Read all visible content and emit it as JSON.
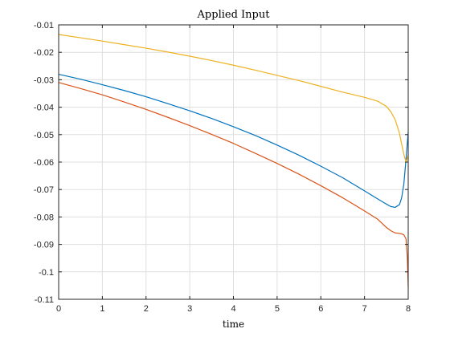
{
  "chart_data": {
    "type": "line",
    "title": "Applied Input",
    "xlabel": "time",
    "ylabel": "",
    "xlim": [
      0,
      8
    ],
    "ylim": [
      -0.11,
      -0.01
    ],
    "xticks": [
      0,
      1,
      2,
      3,
      4,
      5,
      6,
      7,
      8
    ],
    "xtick_labels": [
      "0",
      "1",
      "2",
      "3",
      "4",
      "5",
      "6",
      "7",
      "8"
    ],
    "yticks": [
      -0.01,
      -0.02,
      -0.03,
      -0.04,
      -0.05,
      -0.06,
      -0.07,
      -0.08,
      -0.09,
      -0.1,
      -0.11
    ],
    "ytick_labels": [
      "-0.01",
      "-0.02",
      "-0.03",
      "-0.04",
      "-0.05",
      "-0.06",
      "-0.07",
      "-0.08",
      "-0.09",
      "-0.1",
      "-0.11"
    ],
    "grid": true,
    "legend": "none",
    "series": [
      {
        "color": "#0072BD",
        "x": [
          0,
          0.5,
          1,
          1.5,
          2,
          2.5,
          3,
          3.5,
          4,
          4.5,
          5,
          5.5,
          6,
          6.5,
          7,
          7.3,
          7.5,
          7.6,
          7.7,
          7.8,
          7.85,
          7.9,
          7.95,
          8.0
        ],
        "y": [
          -0.028,
          -0.0298,
          -0.0318,
          -0.0339,
          -0.0362,
          -0.0387,
          -0.0413,
          -0.0441,
          -0.0471,
          -0.0503,
          -0.0538,
          -0.0575,
          -0.0615,
          -0.0657,
          -0.0705,
          -0.0734,
          -0.0753,
          -0.0762,
          -0.0765,
          -0.0755,
          -0.073,
          -0.068,
          -0.059,
          -0.049
        ]
      },
      {
        "color": "#D95319",
        "x": [
          0,
          0.5,
          1,
          1.5,
          2,
          2.5,
          3,
          3.5,
          4,
          4.5,
          5,
          5.5,
          6,
          6.5,
          7,
          7.3,
          7.5,
          7.6,
          7.7,
          7.8,
          7.85,
          7.9,
          7.95,
          7.98,
          8.0
        ],
        "y": [
          -0.031,
          -0.0332,
          -0.0355,
          -0.0381,
          -0.0408,
          -0.0437,
          -0.0467,
          -0.0499,
          -0.0532,
          -0.0568,
          -0.0605,
          -0.0644,
          -0.0686,
          -0.073,
          -0.0778,
          -0.0808,
          -0.0838,
          -0.085,
          -0.0858,
          -0.086,
          -0.0862,
          -0.0865,
          -0.088,
          -0.095,
          -0.1055
        ]
      },
      {
        "color": "#EDB120",
        "x": [
          0,
          0.5,
          1,
          1.5,
          2,
          2.5,
          3,
          3.5,
          4,
          4.5,
          5,
          5.5,
          6,
          6.5,
          7,
          7.3,
          7.5,
          7.6,
          7.7,
          7.8,
          7.85,
          7.9,
          7.95,
          8.0
        ],
        "y": [
          -0.0135,
          -0.0147,
          -0.0159,
          -0.0172,
          -0.0185,
          -0.0199,
          -0.0214,
          -0.023,
          -0.0247,
          -0.0265,
          -0.0284,
          -0.0303,
          -0.0324,
          -0.0345,
          -0.0364,
          -0.0378,
          -0.0397,
          -0.0416,
          -0.0445,
          -0.0495,
          -0.0535,
          -0.0572,
          -0.06,
          -0.0575
        ]
      }
    ]
  }
}
